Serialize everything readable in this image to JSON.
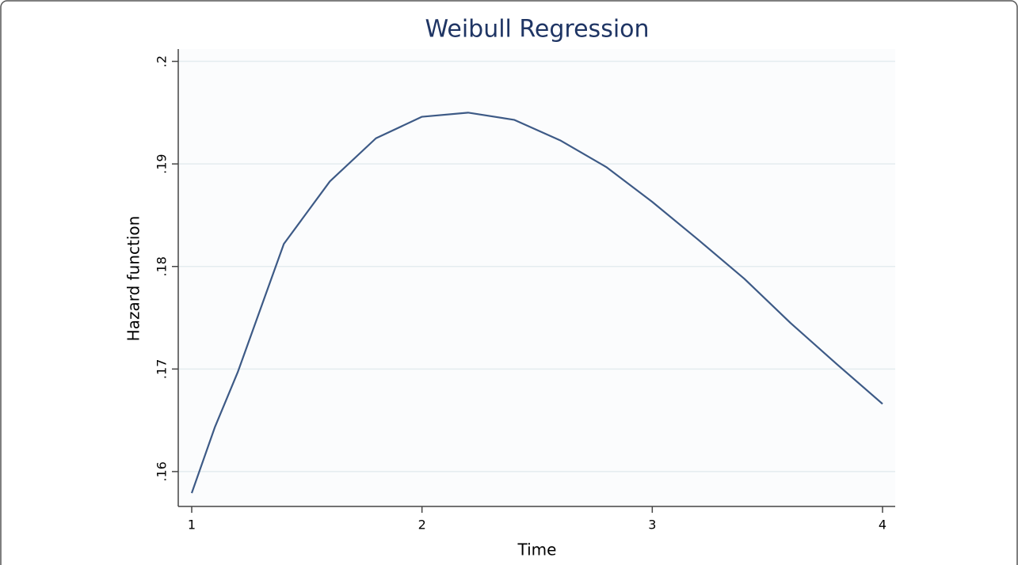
{
  "chart_data": {
    "type": "line",
    "title": "Weibull Regression",
    "x_label": "Time",
    "y_label": "Hazard function",
    "x": [
      1,
      1.1,
      1.2,
      1.4,
      1.6,
      1.8,
      2.0,
      2.2,
      2.4,
      2.6,
      2.8,
      3.0,
      3.2,
      3.4,
      3.6,
      3.8,
      4.0
    ],
    "series": [
      {
        "name": "Hazard function",
        "color": "#3d5a86",
        "values": [
          0.1579,
          0.1643,
          0.1697,
          0.1822,
          0.1883,
          0.1925,
          0.1946,
          0.195,
          0.1943,
          0.1923,
          0.1897,
          0.1863,
          0.1826,
          0.1788,
          0.1745,
          0.1705,
          0.1666
        ]
      }
    ],
    "xlim": [
      0.9415,
      4.055
    ],
    "ylim": [
      0.1566,
      0.2012
    ],
    "xticks": [
      1,
      2,
      3,
      4
    ],
    "yticks": [
      {
        "value": 0.16,
        "label": ".16"
      },
      {
        "value": 0.17,
        "label": ".17"
      },
      {
        "value": 0.18,
        "label": ".18"
      },
      {
        "value": 0.19,
        "label": ".19"
      },
      {
        "value": 0.2,
        "label": ".2"
      }
    ],
    "grid": true
  }
}
